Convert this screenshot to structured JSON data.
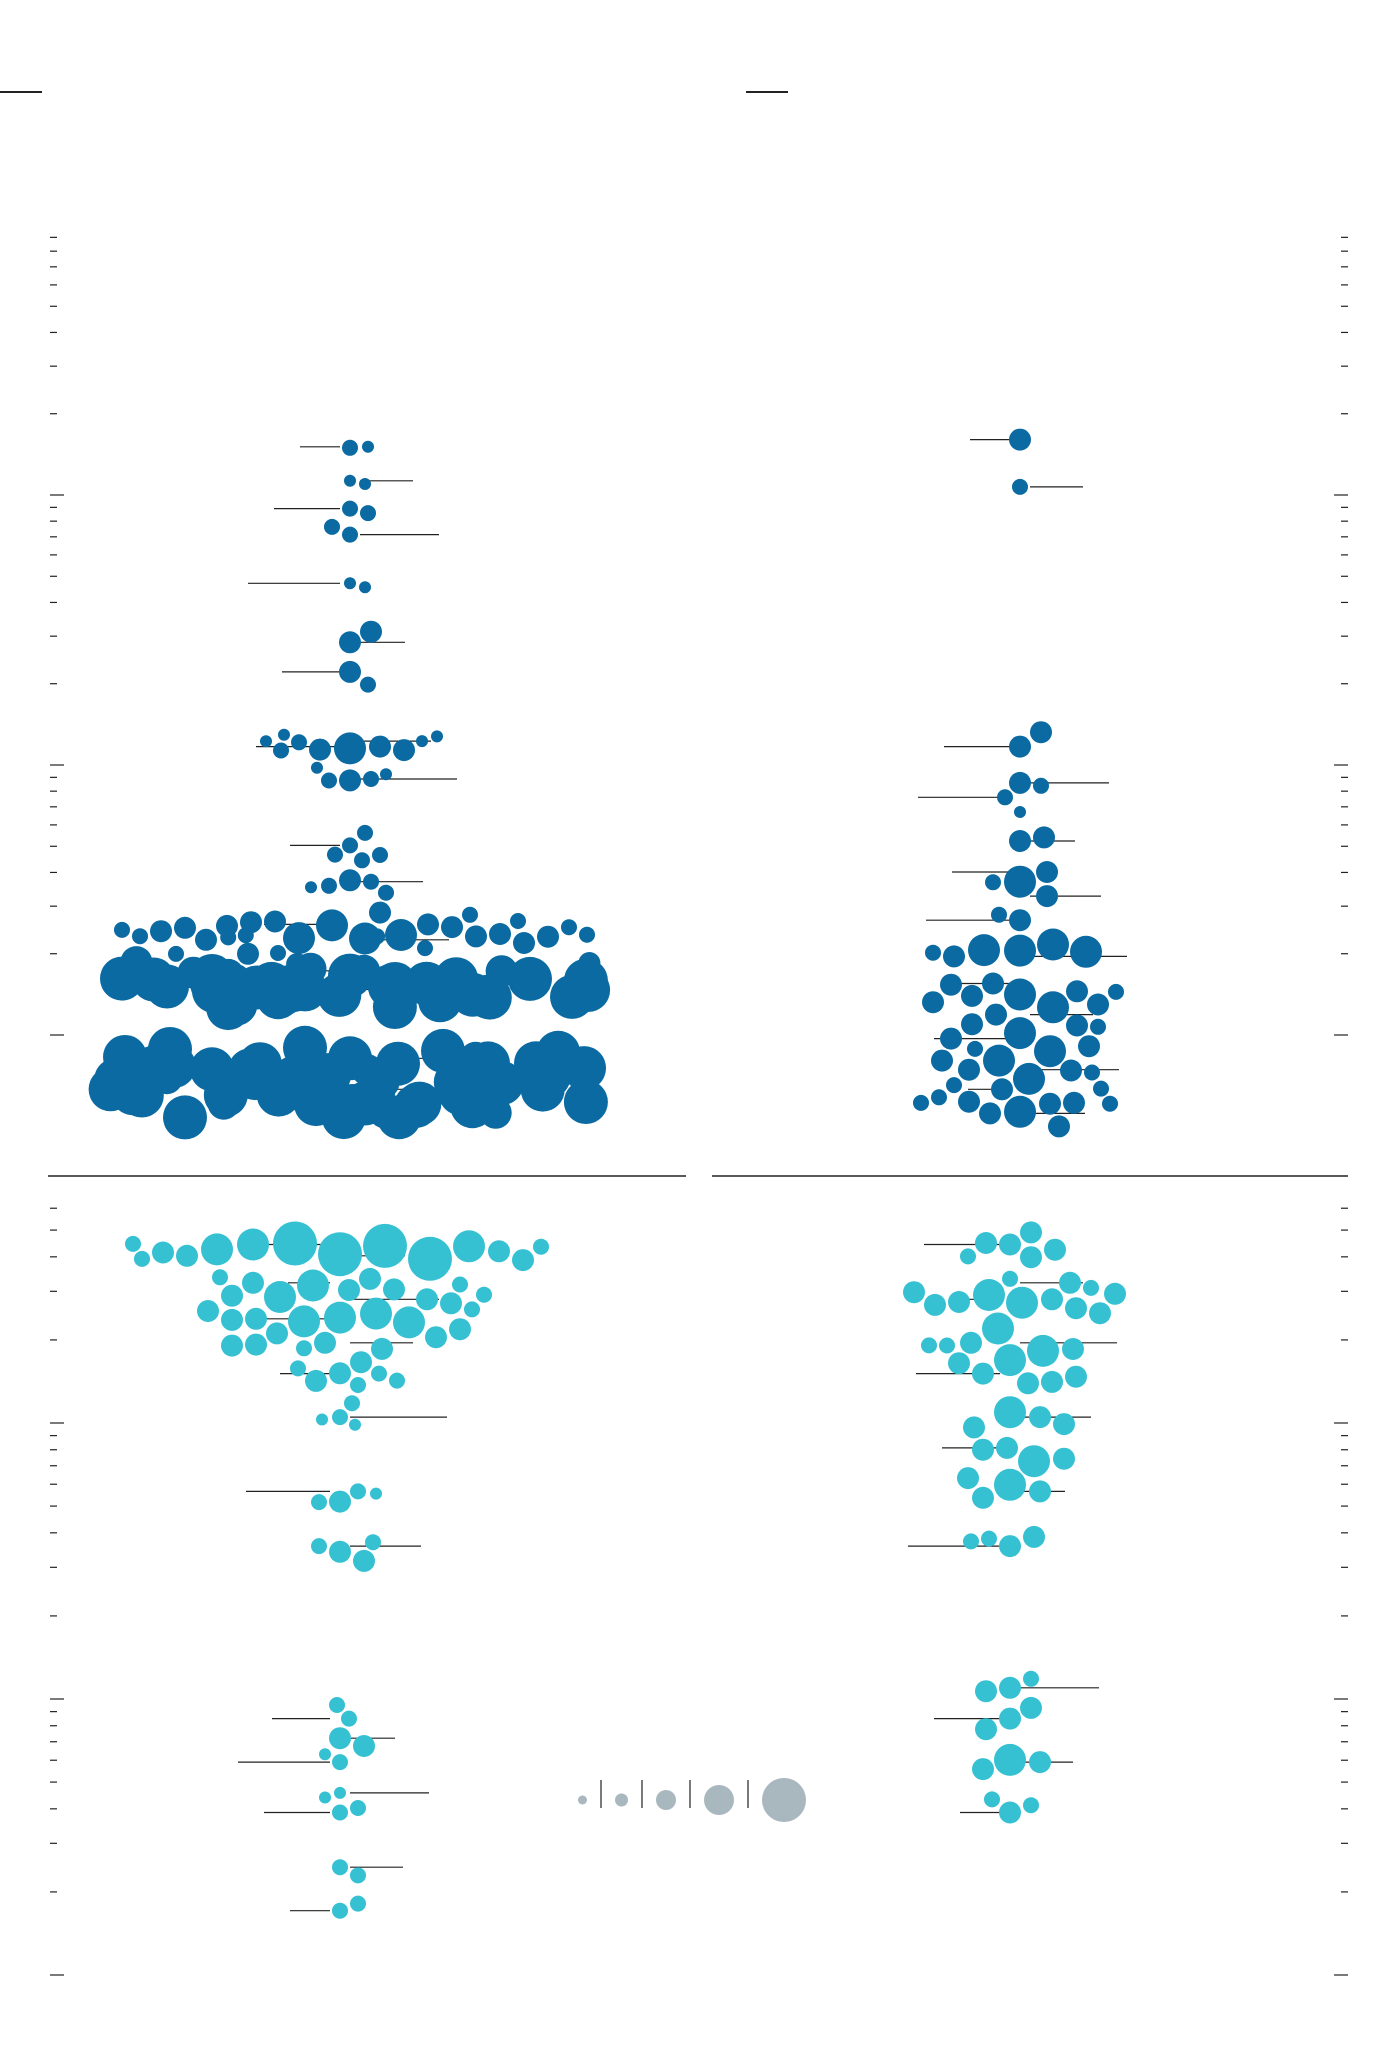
{
  "chart_data": [
    {
      "type": "scatter",
      "panel": "top-left",
      "title": "",
      "xlabel": "",
      "ylabel": "",
      "scale": "log",
      "color": "#0a6aa1",
      "grid": false,
      "points": [
        {
          "v": 6.2,
          "s": 1
        },
        {
          "v": 8.5,
          "s": 1
        },
        {
          "v": 11,
          "s": 2
        },
        {
          "v": 14,
          "s": 2
        },
        {
          "v": 22,
          "s": 1
        },
        {
          "v": 38,
          "s": 3
        },
        {
          "v": 50,
          "s": 3
        },
        {
          "v": 95,
          "s": 1
        },
        {
          "v": 100,
          "s": 3
        },
        {
          "v": 135,
          "s": 2
        },
        {
          "v": 250,
          "s": 2
        },
        {
          "v": 350,
          "s": 2
        },
        {
          "v": 520,
          "s": 3
        },
        {
          "v": 600,
          "s": 3
        },
        {
          "v": 800,
          "s": 4
        },
        {
          "v": 950,
          "s": 5
        },
        {
          "v": 1000,
          "s": 5
        },
        {
          "v": 1800,
          "s": 5
        },
        {
          "v": 2200,
          "s": 5
        },
        {
          "v": 2400,
          "s": 5
        },
        {
          "v": 2800,
          "s": 5
        }
      ]
    },
    {
      "type": "scatter",
      "panel": "top-right",
      "title": "",
      "xlabel": "",
      "ylabel": "",
      "scale": "log",
      "color": "#0a6aa1",
      "grid": false,
      "points": [
        {
          "v": 5.8,
          "s": 3
        },
        {
          "v": 9,
          "s": 2
        },
        {
          "v": 100,
          "s": 3
        },
        {
          "v": 140,
          "s": 3
        },
        {
          "v": 160,
          "s": 2
        },
        {
          "v": 240,
          "s": 3
        },
        {
          "v": 320,
          "s": 3
        },
        {
          "v": 400,
          "s": 3
        },
        {
          "v": 500,
          "s": 3
        },
        {
          "v": 700,
          "s": 3
        },
        {
          "v": 900,
          "s": 3
        },
        {
          "v": 1200,
          "s": 3
        },
        {
          "v": 1500,
          "s": 3
        },
        {
          "v": 2000,
          "s": 3
        },
        {
          "v": 2400,
          "s": 3
        },
        {
          "v": 3000,
          "s": 3
        }
      ]
    },
    {
      "type": "scatter",
      "panel": "bottom-left",
      "title": "",
      "xlabel": "",
      "ylabel": "",
      "scale": "log",
      "color": "#36c1d3",
      "grid": false,
      "points": [
        {
          "v": 2,
          "s": 2
        },
        {
          "v": 3,
          "s": 2
        },
        {
          "v": 5,
          "s": 2
        },
        {
          "v": 6,
          "s": 1
        },
        {
          "v": 8,
          "s": 2
        },
        {
          "v": 10,
          "s": 3
        },
        {
          "v": 12,
          "s": 2
        },
        {
          "v": 60,
          "s": 2
        },
        {
          "v": 100,
          "s": 2
        },
        {
          "v": 200,
          "s": 2
        },
        {
          "v": 300,
          "s": 2
        },
        {
          "v": 400,
          "s": 3
        },
        {
          "v": 500,
          "s": 3
        },
        {
          "v": 600,
          "s": 3
        },
        {
          "v": 700,
          "s": 3
        },
        {
          "v": 900,
          "s": 3
        },
        {
          "v": 1000,
          "s": 4
        }
      ]
    },
    {
      "type": "scatter",
      "panel": "bottom-right",
      "title": "",
      "xlabel": "",
      "ylabel": "",
      "scale": "log",
      "color": "#36c1d3",
      "grid": false,
      "points": [
        {
          "v": 5,
          "s": 3
        },
        {
          "v": 8,
          "s": 3
        },
        {
          "v": 12,
          "s": 3
        },
        {
          "v": 16,
          "s": 3
        },
        {
          "v": 60,
          "s": 3
        },
        {
          "v": 100,
          "s": 3
        },
        {
          "v": 150,
          "s": 3
        },
        {
          "v": 200,
          "s": 3
        },
        {
          "v": 300,
          "s": 3
        },
        {
          "v": 400,
          "s": 3
        },
        {
          "v": 600,
          "s": 3
        },
        {
          "v": 700,
          "s": 3
        },
        {
          "v": 1000,
          "s": 3
        }
      ]
    }
  ],
  "legend": {
    "size_classes": [
      1,
      2,
      3,
      4,
      5
    ],
    "color": "#a9b7bf"
  },
  "colors": {
    "dark_series": "#0a6aa1",
    "light_series": "#36c1d3",
    "legend_bubbles": "#a9b7bf",
    "axis": "#222222"
  }
}
